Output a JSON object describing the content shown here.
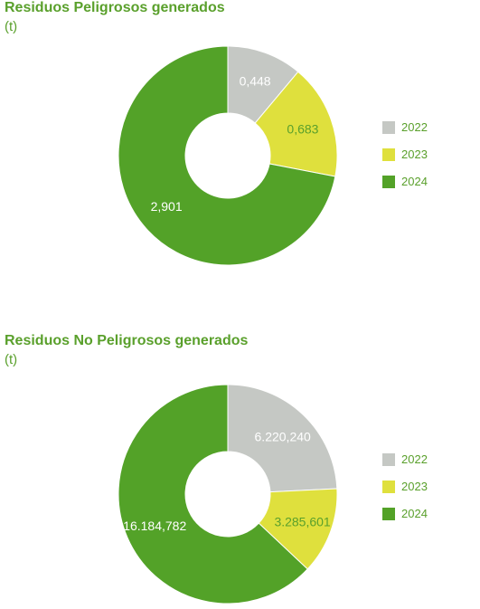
{
  "chart_data": [
    {
      "type": "pie",
      "title": "Residuos Peligrosos generados",
      "unit_label": "(t)",
      "categories": [
        "2022",
        "2023",
        "2024"
      ],
      "values": [
        0.448,
        0.683,
        2.901
      ],
      "value_labels": [
        "0,448",
        "0,683",
        "2,901"
      ],
      "colors": [
        "#c5c8c4",
        "#dfe03d",
        "#53a228"
      ],
      "label_colors": [
        "#ffffff",
        "#5aa02c",
        "#ffffff"
      ],
      "legend": [
        "2022",
        "2023",
        "2024"
      ],
      "legend_position": "right",
      "donut": true
    },
    {
      "type": "pie",
      "title": "Residuos No Peligrosos generados",
      "unit_label": "(t)",
      "categories": [
        "2022",
        "2023",
        "2024"
      ],
      "values": [
        6220.24,
        3285.601,
        16184.782
      ],
      "value_labels": [
        "6.220,240",
        "3.285,601",
        "16.184,782"
      ],
      "colors": [
        "#c5c8c4",
        "#dfe03d",
        "#53a228"
      ],
      "label_colors": [
        "#ffffff",
        "#5aa02c",
        "#ffffff"
      ],
      "legend": [
        "2022",
        "2023",
        "2024"
      ],
      "legend_position": "right",
      "donut": true
    }
  ]
}
